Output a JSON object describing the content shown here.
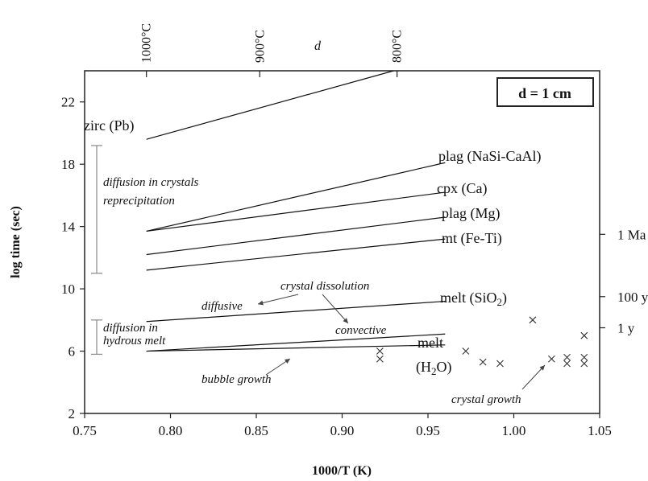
{
  "chart_data": {
    "type": "line",
    "xlabel": "1000/T (K)",
    "ylabel": "log time (sec)",
    "xlim": [
      0.75,
      1.05
    ],
    "ylim": [
      2,
      24
    ],
    "xticks": [
      "0.75",
      "0.80",
      "0.85",
      "0.90",
      "0.95",
      "1.00",
      "1.05"
    ],
    "yticks": [
      "2",
      "6",
      "10",
      "14",
      "18",
      "22"
    ],
    "top_axis": {
      "ticks": [
        {
          "label": "1000°C",
          "x": 0.786
        },
        {
          "label": "900°C",
          "x": 0.852
        },
        {
          "label": "800°C",
          "x": 0.932
        }
      ],
      "title": "d"
    },
    "right_axis": [
      {
        "label": "1 Ma",
        "y": 13.5
      },
      {
        "label": "100 y",
        "y": 9.5
      },
      {
        "label": "1 y",
        "y": 7.5
      }
    ],
    "legend_box": "d = 1 cm",
    "series": [
      {
        "name": "zirc (Pb)",
        "x": [
          0.786,
          0.93
        ],
        "y": [
          19.6,
          24.0
        ]
      },
      {
        "name": "plag (NaSi-CaAl)",
        "x": [
          0.786,
          0.96
        ],
        "y": [
          13.7,
          18.1
        ]
      },
      {
        "name": "cpx (Ca)",
        "x": [
          0.786,
          0.96
        ],
        "y": [
          13.7,
          16.2
        ]
      },
      {
        "name": "plag (Mg)",
        "x": [
          0.786,
          0.96
        ],
        "y": [
          12.2,
          14.6
        ]
      },
      {
        "name": "mt (Fe-Ti)",
        "x": [
          0.786,
          0.96
        ],
        "y": [
          11.2,
          13.2
        ]
      },
      {
        "name": "melt (SiO2)",
        "x": [
          0.786,
          0.96
        ],
        "y": [
          7.9,
          9.2
        ]
      },
      {
        "name": "melt (H2O)",
        "x": [
          0.786,
          0.96
        ],
        "y": [
          6.0,
          7.1
        ]
      },
      {
        "name": "",
        "x": [
          0.786,
          0.96
        ],
        "y": [
          6.0,
          6.4
        ]
      }
    ],
    "crosses": [
      {
        "x": 0.922,
        "y": 6.0
      },
      {
        "x": 0.922,
        "y": 5.5
      },
      {
        "x": 0.972,
        "y": 6.0
      },
      {
        "x": 0.982,
        "y": 5.3
      },
      {
        "x": 0.992,
        "y": 5.2
      },
      {
        "x": 1.011,
        "y": 8.0
      },
      {
        "x": 1.022,
        "y": 5.5
      },
      {
        "x": 1.031,
        "y": 5.6
      },
      {
        "x": 1.031,
        "y": 5.2
      },
      {
        "x": 1.041,
        "y": 7.0
      },
      {
        "x": 1.041,
        "y": 5.6
      },
      {
        "x": 1.041,
        "y": 5.2
      }
    ],
    "ranges": [
      {
        "y": [
          11.0,
          19.2
        ]
      },
      {
        "y": [
          5.8,
          8.0
        ]
      }
    ],
    "annotations": {
      "diffusion_crystals": [
        "diffusion in crystals",
        "reprecipitation"
      ],
      "diffusion_melt": [
        "diffusion in",
        "hydrous melt"
      ],
      "crystal_dissolution": "crystal dissolution",
      "diffusive": "diffusive",
      "convective": "convective",
      "bubble_growth": "bubble growth",
      "crystal_growth": "crystal growth"
    }
  }
}
